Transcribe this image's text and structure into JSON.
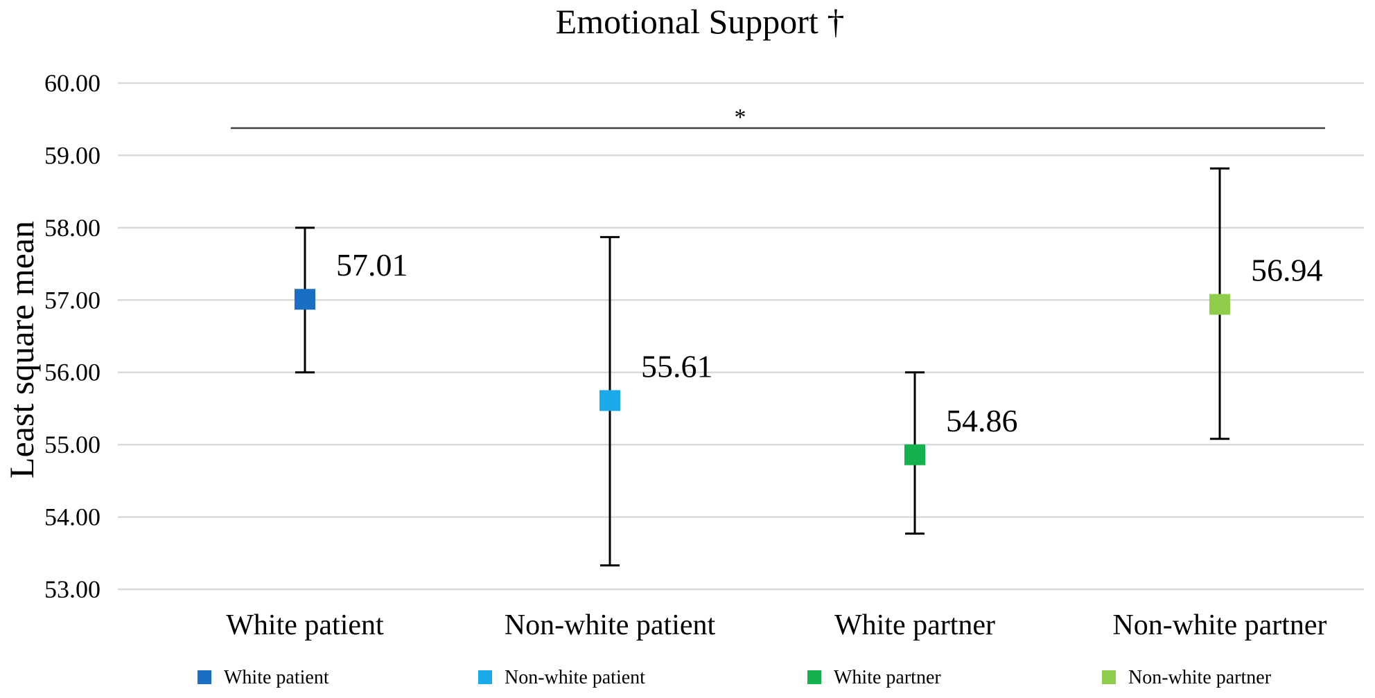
{
  "chart_data": {
    "type": "scatter",
    "title": "Emotional Support †",
    "xlabel": "",
    "ylabel": "Least square mean",
    "ylim": [
      53.0,
      60.0
    ],
    "yticks": [
      "53.00",
      "54.00",
      "55.00",
      "56.00",
      "57.00",
      "58.00",
      "59.00",
      "60.00"
    ],
    "grid": true,
    "legend_position": "bottom",
    "significance_marker": "*",
    "categories": [
      "White patient",
      "Non-white patient",
      "White partner",
      "Non-white partner"
    ],
    "series": [
      {
        "name": "White patient",
        "color": "#1a6fc4",
        "value": 57.01,
        "label": "57.01",
        "error_low": 56.0,
        "error_high": 58.0
      },
      {
        "name": "Non-white patient",
        "color": "#1aa9ea",
        "value": 55.61,
        "label": "55.61",
        "error_low": 53.33,
        "error_high": 57.87
      },
      {
        "name": "White partner",
        "color": "#14b14f",
        "value": 54.86,
        "label": "54.86",
        "error_low": 53.77,
        "error_high": 56.0
      },
      {
        "name": "Non-white partner",
        "color": "#8fcd4a",
        "value": 56.94,
        "label": "56.94",
        "error_low": 55.08,
        "error_high": 58.82
      }
    ]
  }
}
